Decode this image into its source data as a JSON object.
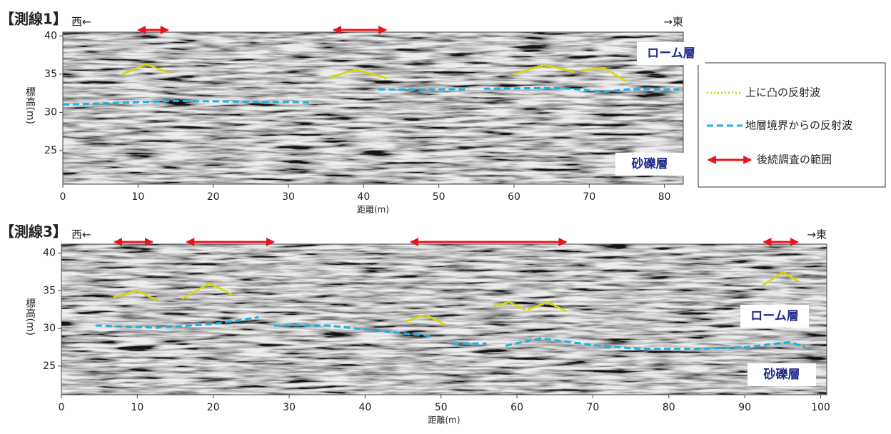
{
  "chart_data": [
    {
      "type": "radargram",
      "title": "【測線1】",
      "west_label": "西←",
      "east_label": "→東",
      "xlabel": "距離(m)",
      "ylabel": "標高(m)",
      "xlim": [
        0,
        82.5
      ],
      "ylim": [
        20.6,
        40.5
      ],
      "xticks": [
        0,
        10,
        20,
        30,
        40,
        50,
        60,
        70,
        80
      ],
      "yticks": [
        25,
        30,
        35,
        40
      ],
      "annotations": [
        "ローム層",
        "砂礫層"
      ],
      "series": [
        {
          "name": "上に凸の反射波",
          "color": "#d8d800",
          "style": "dotted",
          "x": [
            8,
            11,
            14,
            null,
            35.5,
            39,
            43,
            null,
            60,
            64,
            68,
            null,
            69,
            72,
            75
          ],
          "values": [
            35,
            36.3,
            35.2,
            null,
            34.6,
            35.6,
            34.5,
            null,
            35,
            36.2,
            35.3,
            null,
            35.5,
            35.8,
            34
          ]
        },
        {
          "name": "地層境界からの反射波",
          "color": "#1ab0e8",
          "style": "dashed",
          "x": [
            0,
            15,
            33,
            null,
            42,
            54,
            null,
            56,
            66,
            72,
            75,
            82
          ],
          "values": [
            31,
            31.5,
            31.3,
            null,
            33,
            33,
            null,
            33.1,
            33.2,
            32.7,
            33,
            33
          ]
        }
      ],
      "ranges": {
        "name": "後続調査の範囲",
        "color": "#e8141c",
        "spans": [
          [
            10,
            14
          ],
          [
            36,
            43
          ]
        ]
      }
    },
    {
      "type": "radargram",
      "title": "【測線3】",
      "west_label": "西←",
      "east_label": "→東",
      "xlabel": "距離(m)",
      "ylabel": "標高(m)",
      "xlim": [
        0,
        100.8
      ],
      "ylim": [
        21.2,
        41.2
      ],
      "xticks": [
        0,
        10,
        20,
        30,
        40,
        50,
        60,
        70,
        80,
        90,
        100
      ],
      "yticks": [
        25,
        30,
        35,
        40
      ],
      "annotations": [
        "ローム層",
        "砂礫層"
      ],
      "series": [
        {
          "color": "#d8d800",
          "style": "dotted",
          "x": [
            7,
            10,
            12.5,
            null,
            16,
            19.5,
            22.5,
            null,
            45.5,
            48,
            50.5,
            null,
            57,
            59,
            61,
            null,
            61.5,
            64,
            66.5,
            null,
            92.5,
            95,
            97
          ],
          "values": [
            34.2,
            35,
            33.8,
            null,
            34,
            36,
            34.5,
            null,
            31,
            31.8,
            30.5,
            null,
            33,
            33.5,
            32.5,
            null,
            32.5,
            33.5,
            32.3,
            null,
            35.8,
            37.5,
            36.3
          ]
        },
        {
          "color": "#1ab0e8",
          "style": "dashed",
          "x": [
            4.5,
            12.5,
            20,
            26,
            null,
            28,
            35,
            48.5,
            null,
            51.5,
            56,
            null,
            58.5,
            63,
            66,
            70,
            76,
            84,
            90,
            96,
            98
          ],
          "values": [
            30.4,
            30.1,
            30.6,
            31.5,
            null,
            30.4,
            30.4,
            29,
            null,
            28,
            28,
            null,
            27.7,
            28.7,
            28.3,
            27.8,
            27.3,
            27.3,
            27.5,
            28.2,
            27.5
          ]
        }
      ],
      "ranges": {
        "color": "#e8141c",
        "spans": [
          [
            7,
            12
          ],
          [
            16.5,
            28
          ],
          [
            46,
            66.5
          ],
          [
            92.5,
            97
          ]
        ]
      }
    }
  ]
}
